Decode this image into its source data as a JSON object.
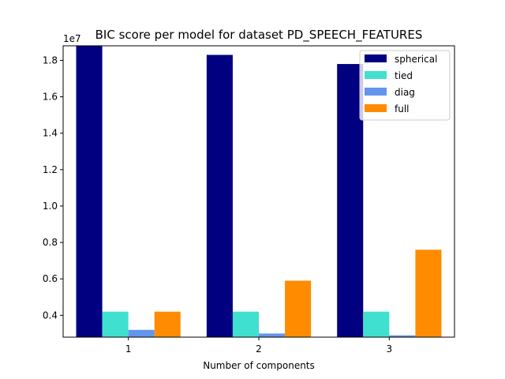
{
  "chart_data": {
    "type": "bar",
    "title": "BIC score per model for dataset PD_SPEECH_FEATURES",
    "xlabel": "Number of components",
    "ylabel": "",
    "y_offset_label": "1e7",
    "categories": [
      "1",
      "2",
      "3"
    ],
    "ylim": [
      0.28,
      1.88
    ],
    "y_ticks": [
      0.4,
      0.6,
      0.8,
      1.0,
      1.2,
      1.4,
      1.6,
      1.8
    ],
    "y_tick_labels": [
      "0.4",
      "0.6",
      "0.8",
      "1.0",
      "1.2",
      "1.4",
      "1.6",
      "1.8"
    ],
    "legend_position": "top-right",
    "grid": false,
    "series": [
      {
        "name": "spherical",
        "color": "#000080",
        "values": [
          1.89,
          1.83,
          1.78
        ]
      },
      {
        "name": "tied",
        "color": "#40e0d0",
        "values": [
          0.42,
          0.42,
          0.42
        ]
      },
      {
        "name": "diag",
        "color": "#6495ed",
        "values": [
          0.32,
          0.3,
          0.29
        ]
      },
      {
        "name": "full",
        "color": "#ff8c00",
        "values": [
          0.42,
          0.59,
          0.76
        ]
      }
    ]
  }
}
